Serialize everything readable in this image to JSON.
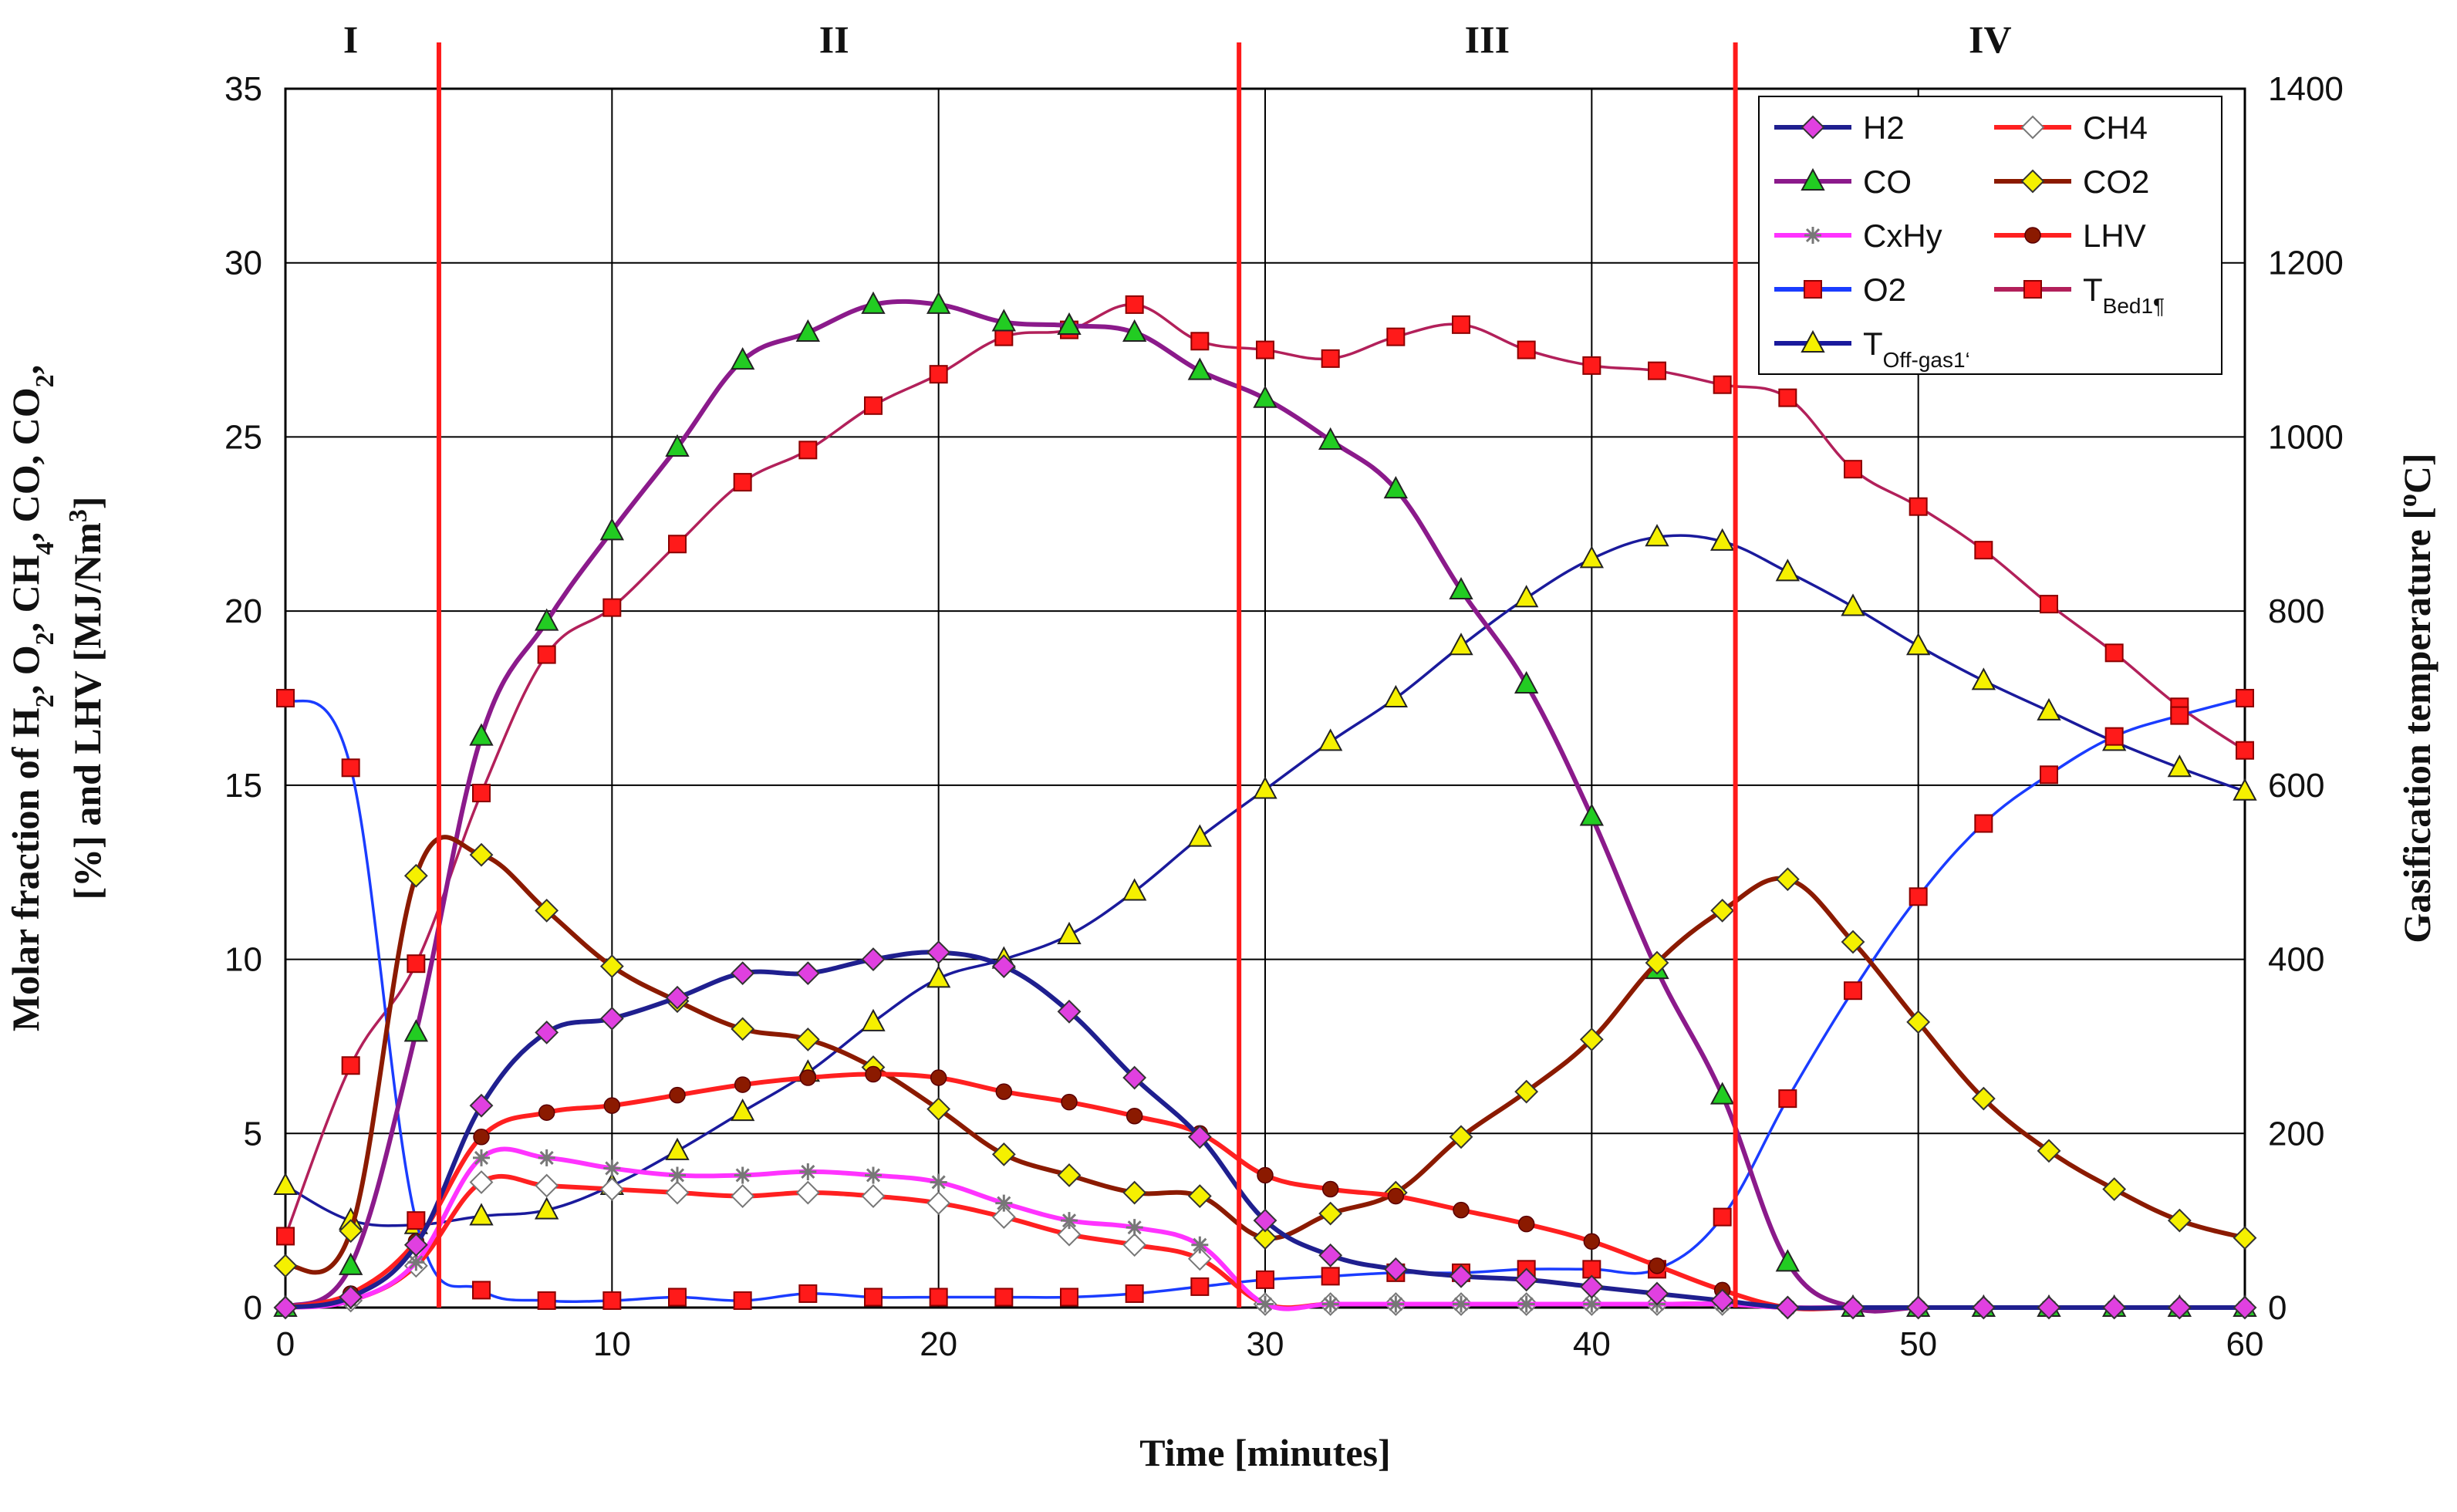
{
  "chart_data": {
    "type": "line",
    "xlabel": "Time [minutes]",
    "ylabel_left": {
      "lines": [
        [
          {
            "t": "Molar fraction of H"
          },
          {
            "t": "2",
            "sub": true
          },
          {
            "t": ", O"
          },
          {
            "t": "2",
            "sub": true
          },
          {
            "t": ", CH"
          },
          {
            "t": "4",
            "sub": true
          },
          {
            "t": ", CO, CO"
          },
          {
            "t": "2",
            "sub": true
          },
          {
            "t": ","
          }
        ],
        [
          {
            "t": "[%] and LHV  [MJ/Nm"
          },
          {
            "t": "3",
            "sup": true
          },
          {
            "t": "]"
          }
        ]
      ]
    },
    "ylabel_right": {
      "parts": [
        {
          "t": "Gasification temperature ["
        },
        {
          "t": "o",
          "sup": true
        },
        {
          "t": "C]"
        }
      ]
    },
    "xlim": [
      0,
      60
    ],
    "ylim_left": [
      0,
      35
    ],
    "ylim_right": [
      0,
      1400
    ],
    "xticks": [
      0,
      10,
      20,
      30,
      40,
      50,
      60
    ],
    "yticks_left": [
      0,
      5,
      10,
      15,
      20,
      25,
      30,
      35
    ],
    "yticks_right": [
      0,
      200,
      400,
      600,
      800,
      1000,
      1200,
      1400
    ],
    "grid": true,
    "phase_lines": [
      4.7,
      29.2,
      44.4
    ],
    "phase_labels": [
      {
        "text": "I",
        "x": 2.0
      },
      {
        "text": "II",
        "x": 16.8
      },
      {
        "text": "III",
        "x": 36.8
      },
      {
        "text": "IV",
        "x": 52.2
      }
    ],
    "legend_position": "top-right",
    "series": [
      {
        "name": "H2",
        "label": [
          {
            "t": "H2"
          }
        ],
        "axis": "left",
        "color": "#1f1f8f",
        "markerFill": "#e040e0",
        "marker": "diamond",
        "x": [
          0,
          2,
          4,
          6,
          8,
          10,
          12,
          14,
          16,
          18,
          20,
          22,
          24,
          26,
          28,
          30,
          32,
          34,
          36,
          38,
          40,
          42,
          44,
          46,
          48,
          50,
          52,
          54,
          56,
          58,
          60
        ],
        "y": [
          0,
          0.3,
          1.8,
          5.8,
          7.9,
          8.3,
          8.9,
          9.6,
          9.6,
          10.0,
          10.2,
          9.8,
          8.5,
          6.6,
          4.9,
          2.5,
          1.5,
          1.1,
          0.9,
          0.8,
          0.6,
          0.4,
          0.2,
          0,
          0,
          0,
          0,
          0,
          0,
          0,
          0
        ]
      },
      {
        "name": "CH4",
        "label": [
          {
            "t": "CH4"
          }
        ],
        "axis": "left",
        "color": "#ff2020",
        "markerFill": "#ffffff",
        "markerStroke": "#777777",
        "marker": "diamond",
        "x": [
          0,
          2,
          4,
          6,
          8,
          10,
          12,
          14,
          16,
          18,
          20,
          22,
          24,
          26,
          28,
          30,
          32,
          34,
          36,
          38,
          40,
          42,
          44,
          46,
          48,
          50,
          52,
          54,
          56,
          58,
          60
        ],
        "y": [
          0,
          0.2,
          1.2,
          3.6,
          3.5,
          3.4,
          3.3,
          3.2,
          3.3,
          3.2,
          3.0,
          2.6,
          2.1,
          1.8,
          1.4,
          0.1,
          0.1,
          0.1,
          0.1,
          0.1,
          0.1,
          0.1,
          0.1,
          0,
          0,
          0,
          0,
          0,
          0,
          0,
          0
        ]
      },
      {
        "name": "CO",
        "label": [
          {
            "t": "CO"
          }
        ],
        "axis": "left",
        "color": "#8b1a8b",
        "markerFill": "#22cc22",
        "marker": "triangle",
        "x": [
          0,
          2,
          4,
          6,
          8,
          10,
          12,
          14,
          16,
          18,
          20,
          22,
          24,
          26,
          28,
          30,
          32,
          34,
          36,
          38,
          40,
          42,
          44,
          46,
          48,
          50,
          52,
          54,
          56,
          58,
          60
        ],
        "y": [
          0,
          1.2,
          7.9,
          16.4,
          19.7,
          22.3,
          24.7,
          27.2,
          28.0,
          28.8,
          28.8,
          28.3,
          28.2,
          28.0,
          26.9,
          26.1,
          24.9,
          23.5,
          20.6,
          17.9,
          14.1,
          9.7,
          6.1,
          1.3,
          0,
          0,
          0,
          0,
          0,
          0,
          0
        ]
      },
      {
        "name": "CO2",
        "label": [
          {
            "t": "CO2"
          }
        ],
        "axis": "left",
        "color": "#8b1a00",
        "markerFill": "#f5f000",
        "marker": "diamond",
        "x": [
          0,
          2,
          4,
          6,
          8,
          10,
          12,
          14,
          16,
          18,
          20,
          22,
          24,
          26,
          28,
          30,
          32,
          34,
          36,
          38,
          40,
          42,
          44,
          46,
          48,
          50,
          52,
          54,
          56,
          58,
          60
        ],
        "y": [
          1.2,
          2.2,
          12.4,
          13.0,
          11.4,
          9.8,
          8.8,
          8.0,
          7.7,
          6.9,
          5.7,
          4.4,
          3.8,
          3.3,
          3.2,
          2.0,
          2.7,
          3.3,
          4.9,
          6.2,
          7.7,
          9.9,
          11.4,
          12.3,
          10.5,
          8.2,
          6.0,
          4.5,
          3.4,
          2.5,
          2.0
        ]
      },
      {
        "name": "CxHy",
        "label": [
          {
            "t": "CxHy"
          }
        ],
        "axis": "left",
        "color": "#ff33ff",
        "markerFill": "#777777",
        "marker": "star",
        "x": [
          0,
          2,
          4,
          6,
          8,
          10,
          12,
          14,
          16,
          18,
          20,
          22,
          24,
          26,
          28,
          30,
          32,
          34,
          36,
          38,
          40,
          42,
          44,
          46,
          48,
          50,
          52,
          54,
          56,
          58,
          60
        ],
        "y": [
          0,
          0.2,
          1.3,
          4.3,
          4.3,
          4.0,
          3.8,
          3.8,
          3.9,
          3.8,
          3.6,
          3.0,
          2.5,
          2.3,
          1.8,
          0.1,
          0.1,
          0.1,
          0.1,
          0.1,
          0.1,
          0.1,
          0.1,
          0,
          0,
          0,
          0,
          0,
          0,
          0,
          0
        ]
      },
      {
        "name": "LHV",
        "label": [
          {
            "t": "LHV"
          }
        ],
        "axis": "left",
        "color": "#ff2020",
        "markerFill": "#8b1a00",
        "marker": "circle",
        "x": [
          0,
          2,
          4,
          6,
          8,
          10,
          12,
          14,
          16,
          18,
          20,
          22,
          24,
          26,
          28,
          30,
          32,
          34,
          36,
          38,
          40,
          42,
          44,
          46,
          48,
          50,
          52,
          54,
          56,
          58,
          60
        ],
        "y": [
          0,
          0.4,
          1.9,
          4.9,
          5.6,
          5.8,
          6.1,
          6.4,
          6.6,
          6.7,
          6.6,
          6.2,
          5.9,
          5.5,
          5.0,
          3.8,
          3.4,
          3.2,
          2.8,
          2.4,
          1.9,
          1.2,
          0.5,
          0,
          0,
          0,
          0,
          0,
          0,
          0,
          0
        ]
      },
      {
        "name": "O2",
        "label": [
          {
            "t": "O2"
          }
        ],
        "axis": "left",
        "color": "#1a3cff",
        "markerFill": "#ff1a1a",
        "marker": "square",
        "x": [
          0,
          2,
          4,
          6,
          8,
          10,
          12,
          14,
          16,
          18,
          20,
          22,
          24,
          26,
          28,
          30,
          32,
          34,
          36,
          38,
          40,
          42,
          44,
          46,
          48,
          50,
          52,
          54,
          56,
          58,
          60
        ],
        "y": [
          17.5,
          15.5,
          2.5,
          0.5,
          0.2,
          0.2,
          0.3,
          0.2,
          0.4,
          0.3,
          0.3,
          0.3,
          0.3,
          0.4,
          0.6,
          0.8,
          0.9,
          1.0,
          1.0,
          1.1,
          1.1,
          1.1,
          2.6,
          6.0,
          9.1,
          11.8,
          13.9,
          15.3,
          16.4,
          17.0,
          17.5
        ]
      },
      {
        "name": "TBed1",
        "label": [
          {
            "t": "T"
          },
          {
            "t": "Bed1¶",
            "sub": true
          }
        ],
        "axis": "right",
        "color": "#b2205a",
        "markerFill": "#ff1a1a",
        "marker": "square",
        "x": [
          0,
          2,
          4,
          6,
          8,
          10,
          12,
          14,
          16,
          18,
          20,
          22,
          24,
          26,
          28,
          30,
          32,
          34,
          36,
          38,
          40,
          42,
          44,
          46,
          48,
          50,
          52,
          54,
          56,
          58,
          60
        ],
        "y": [
          82,
          278,
          395,
          591,
          750,
          804,
          877,
          948,
          985,
          1036,
          1072,
          1115,
          1123,
          1152,
          1110,
          1100,
          1090,
          1115,
          1129,
          1100,
          1082,
          1076,
          1060,
          1045,
          963,
          920,
          870,
          808,
          752,
          690,
          640
        ]
      },
      {
        "name": "TOff-gas1",
        "label": [
          {
            "t": "T"
          },
          {
            "t": "Off-gas1‘",
            "sub": true
          }
        ],
        "axis": "right",
        "color": "#1a1a9c",
        "markerFill": "#f5f000",
        "marker": "triangle",
        "x": [
          0,
          2,
          4,
          6,
          8,
          10,
          12,
          14,
          16,
          18,
          20,
          22,
          24,
          26,
          28,
          30,
          32,
          34,
          36,
          38,
          40,
          42,
          44,
          46,
          48,
          50,
          52,
          54,
          56,
          58,
          60
        ],
        "y": [
          140,
          100,
          95,
          105,
          112,
          140,
          180,
          225,
          270,
          328,
          378,
          400,
          428,
          478,
          540,
          595,
          650,
          700,
          760,
          815,
          860,
          885,
          880,
          845,
          805,
          760,
          720,
          685,
          650,
          620,
          593
        ]
      }
    ]
  }
}
